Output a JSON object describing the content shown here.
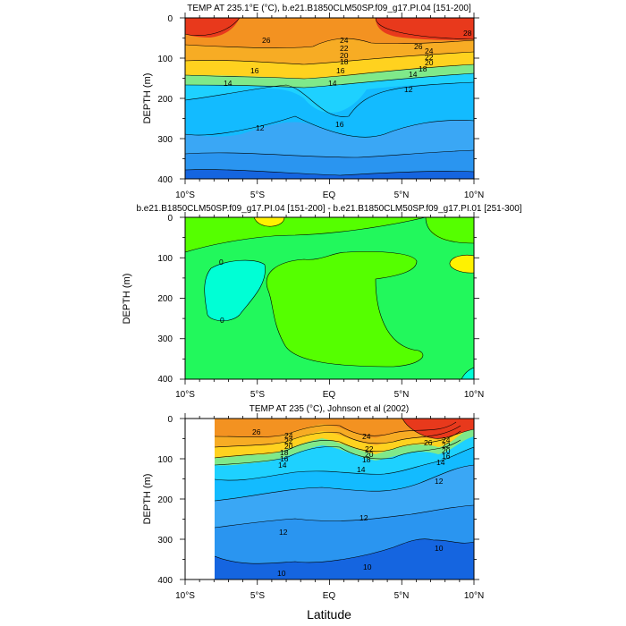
{
  "chart_data": [
    {
      "type": "contour",
      "title": "TEMP AT 235.1°E (°C), b.e21.B1850CLM50SP.f09_g17.PI.04 [151-200]",
      "ylabel": "DEPTH (m)",
      "ylim": [
        400,
        0
      ],
      "yticks": [
        "0",
        "100",
        "200",
        "300",
        "400"
      ],
      "xticks": [
        "10°S",
        "5°S",
        "EQ",
        "5°N",
        "10°N"
      ],
      "xlim": [
        -10,
        10
      ],
      "contour_labels": [
        "26",
        "24",
        "22",
        "20",
        "18",
        "16",
        "14",
        "14",
        "16",
        "14",
        "12",
        "12",
        "26",
        "24",
        "22",
        "20",
        "18",
        "16",
        "28"
      ],
      "colors": {
        "warmest": "#e8391c",
        "warm": "#f39221",
        "mid": "#ffd21f",
        "cool": "#1ed1ff",
        "cold": "#2a95f0",
        "coldest": "#1565e0"
      }
    },
    {
      "type": "contour",
      "title": "b.e21.B1850CLM50SP.f09_g17.PI.04 [151-200] - b.e21.B1850CLM50SP.f09_g17.PI.01 [251-300]",
      "ylabel": "DEPTH (m)",
      "ylim": [
        400,
        0
      ],
      "yticks": [
        "0",
        "100",
        "200",
        "300",
        "400"
      ],
      "xticks": [
        "10°S",
        "5°S",
        "EQ",
        "5°N",
        "10°N"
      ],
      "xlim": [
        -10,
        10
      ],
      "contour_labels": [
        "0",
        "0"
      ],
      "colors": {
        "positive": "#55ff00",
        "zero": "#22f85c",
        "negative": "#00ffd5",
        "high": "#fff200"
      }
    },
    {
      "type": "contour",
      "title": "TEMP AT 235 (°C), Johnson et al (2002)",
      "ylabel": "DEPTH (m)",
      "ylim": [
        400,
        0
      ],
      "yticks": [
        "0",
        "100",
        "200",
        "300",
        "400"
      ],
      "xticks": [
        "10°S",
        "5°S",
        "EQ",
        "5°N",
        "10°N"
      ],
      "xlim": [
        -10,
        10
      ],
      "data_xrange": [
        -8,
        10
      ],
      "contour_labels": [
        "26",
        "24",
        "22",
        "20",
        "18",
        "16",
        "14",
        "24",
        "22",
        "20",
        "18",
        "14",
        "26",
        "24",
        "22",
        "20",
        "16",
        "14",
        "12",
        "12",
        "12",
        "10",
        "10",
        "10"
      ],
      "colors": {
        "warmest": "#e8391c",
        "warm": "#f39221",
        "mid": "#ffd21f",
        "cool": "#1ed1ff",
        "cold": "#2a95f0",
        "coldest": "#1565e0"
      }
    }
  ],
  "shared_xlabel": "Latitude"
}
